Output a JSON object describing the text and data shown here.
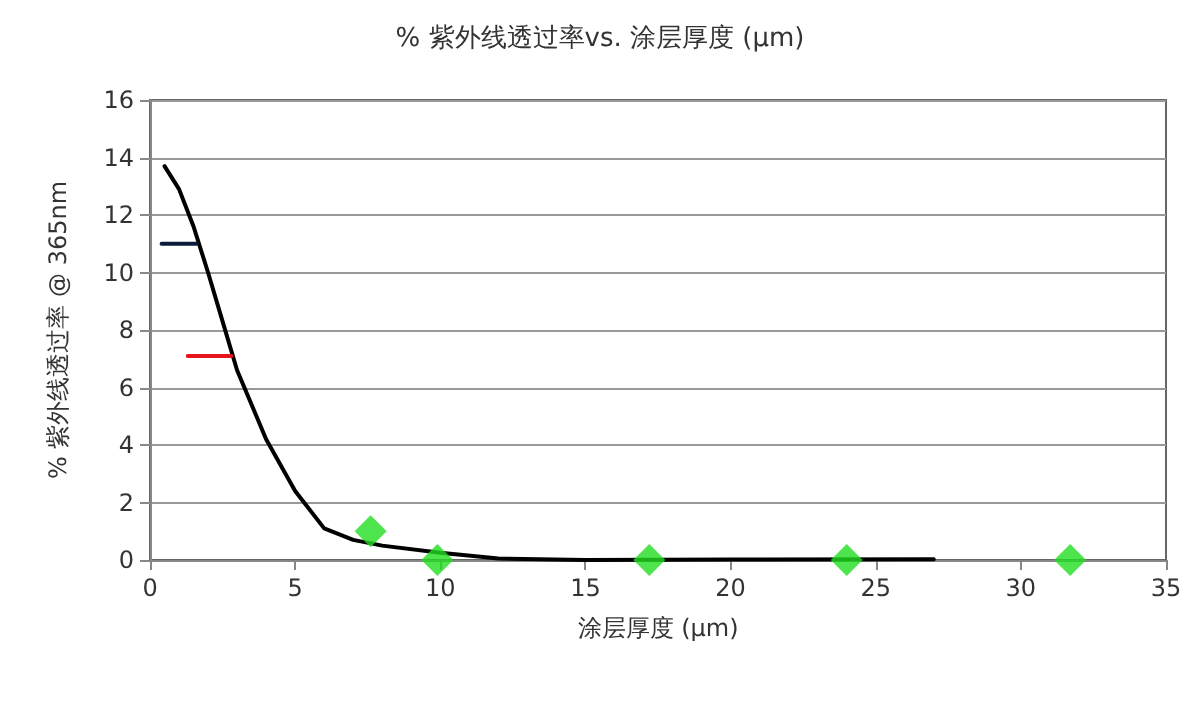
{
  "chart_data": {
    "type": "line",
    "title": "% 紫外线透过率vs. 涂层厚度 (µm)",
    "xlabel": "涂层厚度 (µm)",
    "ylabel": "% 紫外线透过率 @ 365nm",
    "xlim": [
      0,
      35
    ],
    "xticks": [
      0,
      5,
      10,
      15,
      20,
      25,
      30,
      35
    ],
    "ylim": [
      0,
      16
    ],
    "yticks": [
      0,
      2,
      4,
      6,
      8,
      10,
      12,
      14,
      16
    ],
    "grid": "y",
    "series": [
      {
        "color": "#000000",
        "marker": "none",
        "x": [
          0.5,
          1,
          1.5,
          2,
          2.5,
          3,
          4,
          5,
          6,
          7,
          8,
          10,
          12,
          15,
          20,
          27
        ],
        "values": [
          13.7,
          12.9,
          11.6,
          10,
          8.3,
          6.6,
          4.2,
          2.4,
          1.1,
          0.7,
          0.5,
          0.25,
          0.05,
          0,
          0.02,
          0.03
        ]
      },
      {
        "color": "#0a1a3a",
        "marker": "none",
        "x": [
          0.4,
          1.6
        ],
        "values": [
          11,
          11
        ]
      },
      {
        "color": "#e8141c",
        "marker": "none",
        "x": [
          1.3,
          2.8
        ],
        "values": [
          7.1,
          7.1
        ]
      },
      {
        "type": "scatter",
        "color": "#22dd22",
        "marker": "diamond",
        "x": [
          7.6,
          9.9,
          17.2,
          24,
          31.7
        ],
        "values": [
          1,
          0,
          0,
          0,
          0
        ]
      }
    ]
  }
}
